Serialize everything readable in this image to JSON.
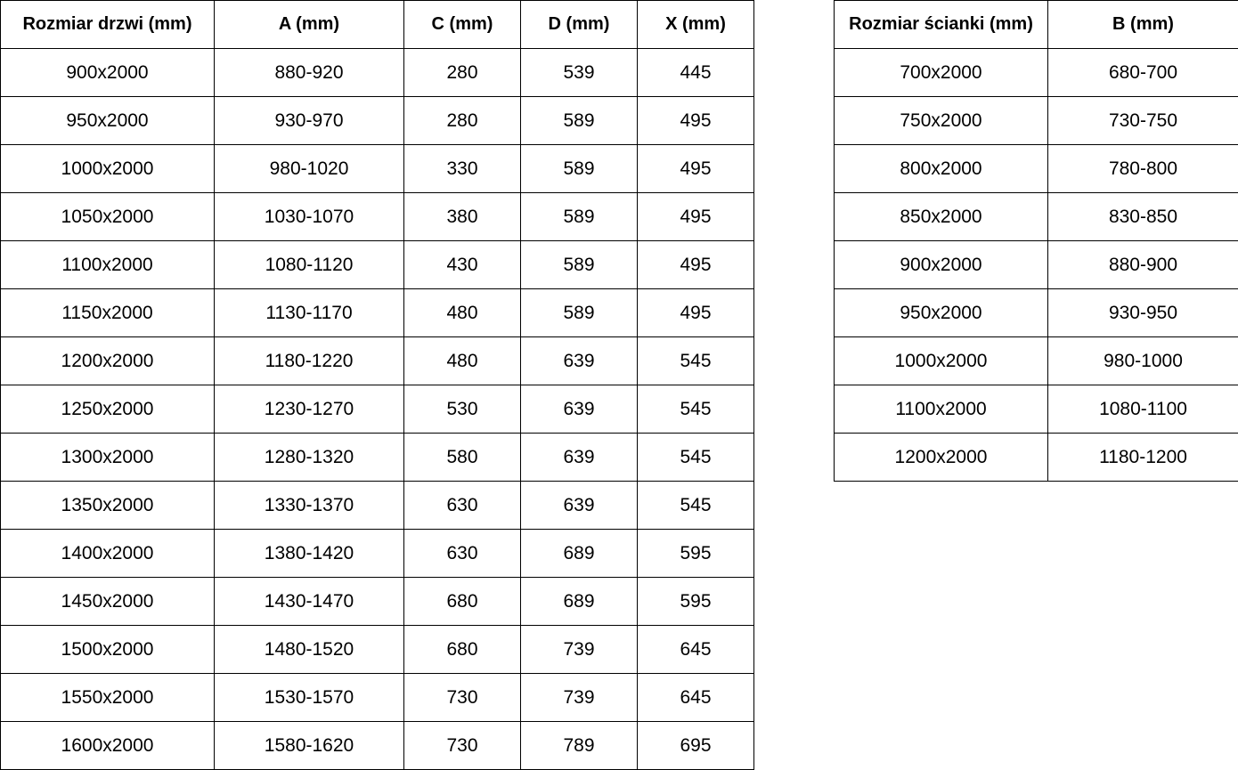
{
  "door_table": {
    "headers": [
      "Rozmiar drzwi (mm)",
      "A (mm)",
      "C (mm)",
      "D (mm)",
      "X (mm)"
    ],
    "rows": [
      [
        "900x2000",
        "880-920",
        "280",
        "539",
        "445"
      ],
      [
        "950x2000",
        "930-970",
        "280",
        "589",
        "495"
      ],
      [
        "1000x2000",
        "980-1020",
        "330",
        "589",
        "495"
      ],
      [
        "1050x2000",
        "1030-1070",
        "380",
        "589",
        "495"
      ],
      [
        "1100x2000",
        "1080-1120",
        "430",
        "589",
        "495"
      ],
      [
        "1150x2000",
        "1130-1170",
        "480",
        "589",
        "495"
      ],
      [
        "1200x2000",
        "1180-1220",
        "480",
        "639",
        "545"
      ],
      [
        "1250x2000",
        "1230-1270",
        "530",
        "639",
        "545"
      ],
      [
        "1300x2000",
        "1280-1320",
        "580",
        "639",
        "545"
      ],
      [
        "1350x2000",
        "1330-1370",
        "630",
        "639",
        "545"
      ],
      [
        "1400x2000",
        "1380-1420",
        "630",
        "689",
        "595"
      ],
      [
        "1450x2000",
        "1430-1470",
        "680",
        "689",
        "595"
      ],
      [
        "1500x2000",
        "1480-1520",
        "680",
        "739",
        "645"
      ],
      [
        "1550x2000",
        "1530-1570",
        "730",
        "739",
        "645"
      ],
      [
        "1600x2000",
        "1580-1620",
        "730",
        "789",
        "695"
      ]
    ]
  },
  "wall_table": {
    "headers": [
      "Rozmiar ścianki (mm)",
      "B (mm)"
    ],
    "rows": [
      [
        "700x2000",
        "680-700"
      ],
      [
        "750x2000",
        "730-750"
      ],
      [
        "800x2000",
        "780-800"
      ],
      [
        "850x2000",
        "830-850"
      ],
      [
        "900x2000",
        "880-900"
      ],
      [
        "950x2000",
        "930-950"
      ],
      [
        "1000x2000",
        "980-1000"
      ],
      [
        "1100x2000",
        "1080-1100"
      ],
      [
        "1200x2000",
        "1180-1200"
      ]
    ]
  }
}
